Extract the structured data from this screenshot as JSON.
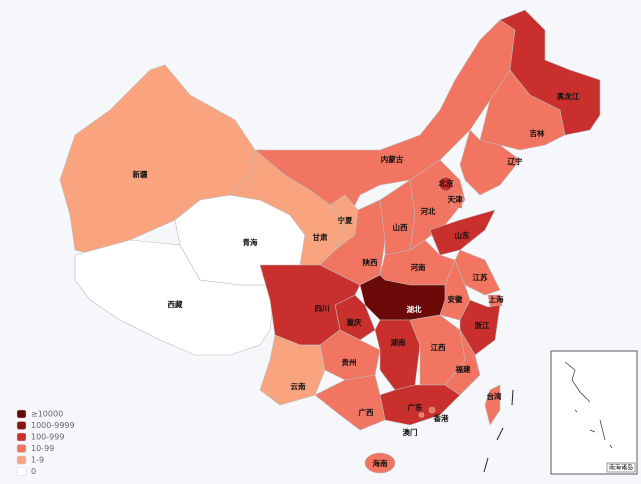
{
  "map": {
    "regions": [
      {
        "name": "新疆",
        "level": 4
      },
      {
        "name": "西藏",
        "level": 5
      },
      {
        "name": "青海",
        "level": 5
      },
      {
        "name": "甘肃",
        "level": 4
      },
      {
        "name": "内蒙古",
        "level": 3
      },
      {
        "name": "宁夏",
        "level": 4
      },
      {
        "name": "陕西",
        "level": 3
      },
      {
        "name": "山西",
        "level": 3
      },
      {
        "name": "河北",
        "level": 3
      },
      {
        "name": "北京",
        "level": 2
      },
      {
        "name": "天津",
        "level": 3
      },
      {
        "name": "辽宁",
        "level": 3
      },
      {
        "name": "吉林",
        "level": 3
      },
      {
        "name": "黑龙江",
        "level": 2
      },
      {
        "name": "山东",
        "level": 2
      },
      {
        "name": "河南",
        "level": 3
      },
      {
        "name": "江苏",
        "level": 3
      },
      {
        "name": "安徽",
        "level": 3
      },
      {
        "name": "上海",
        "level": 3
      },
      {
        "name": "浙江",
        "level": 2
      },
      {
        "name": "湖北",
        "level": 0
      },
      {
        "name": "重庆",
        "level": 2
      },
      {
        "name": "四川",
        "level": 2
      },
      {
        "name": "贵州",
        "level": 3
      },
      {
        "name": "云南",
        "level": 4
      },
      {
        "name": "湖南",
        "level": 2
      },
      {
        "name": "江西",
        "level": 3
      },
      {
        "name": "福建",
        "level": 3
      },
      {
        "name": "广东",
        "level": 2
      },
      {
        "name": "广西",
        "level": 3
      },
      {
        "name": "海南",
        "level": 3
      },
      {
        "name": "台湾",
        "level": 3
      },
      {
        "name": "香港",
        "level": 3
      },
      {
        "name": "澳门",
        "level": 3
      }
    ],
    "legend": [
      {
        "label": "≥10000",
        "color": "#6b0808"
      },
      {
        "label": "1000-9999",
        "color": "#8e1414"
      },
      {
        "label": "100-999",
        "color": "#c92f2c"
      },
      {
        "label": "10-99",
        "color": "#f27562"
      },
      {
        "label": "1-9",
        "color": "#f9a47f"
      },
      {
        "label": "0",
        "color": "#ffffff"
      }
    ],
    "inset_label": "南海诸岛"
  }
}
